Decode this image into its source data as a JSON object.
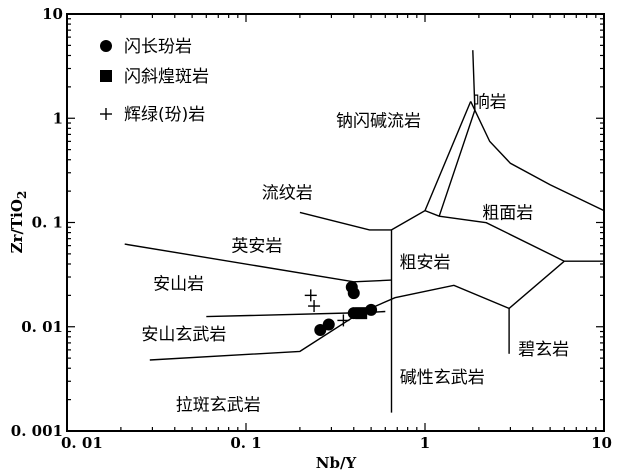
{
  "chart_data": {
    "type": "scatter",
    "title": "",
    "xlabel": "Nb/Y",
    "ylabel": "Zr/TiO",
    "ylabel_subscript": "2",
    "x_scale": "log",
    "y_scale": "log",
    "xlim": [
      0.01,
      10
    ],
    "ylim": [
      0.001,
      10
    ],
    "grid": false,
    "legend_position": "top-left",
    "x_ticks": [
      {
        "value": 0.01,
        "label": "0. 01"
      },
      {
        "value": 0.1,
        "label": "0. 1"
      },
      {
        "value": 1,
        "label": "1"
      },
      {
        "value": 10,
        "label": "10"
      }
    ],
    "y_ticks": [
      {
        "value": 0.001,
        "label": "0. 001"
      },
      {
        "value": 0.01,
        "label": "0. 01"
      },
      {
        "value": 0.1,
        "label": "0. 1"
      },
      {
        "value": 1,
        "label": "1"
      },
      {
        "value": 10,
        "label": "10"
      }
    ],
    "series": [
      {
        "name": "闪长玢岩",
        "marker": "circle",
        "points": [
          [
            0.39,
            0.024
          ],
          [
            0.4,
            0.021
          ],
          [
            0.4,
            0.0135
          ],
          [
            0.5,
            0.0145
          ],
          [
            0.29,
            0.0105
          ],
          [
            0.26,
            0.0093
          ]
        ]
      },
      {
        "name": "闪斜煌斑岩",
        "marker": "square",
        "points": [
          [
            0.44,
            0.0135
          ]
        ]
      },
      {
        "name": "辉绿(玢)岩",
        "marker": "plus",
        "points": [
          [
            0.23,
            0.02
          ],
          [
            0.24,
            0.0158
          ],
          [
            0.35,
            0.0115
          ]
        ]
      }
    ],
    "field_labels": [
      {
        "text": "钠闪碱流岩",
        "x": 0.55,
        "y": 0.95
      },
      {
        "text": "响岩",
        "x": 2.3,
        "y": 1.45
      },
      {
        "text": "流纹岩",
        "x": 0.17,
        "y": 0.195
      },
      {
        "text": "粗面岩",
        "x": 2.9,
        "y": 0.125
      },
      {
        "text": "英安岩",
        "x": 0.115,
        "y": 0.06
      },
      {
        "text": "粗安岩",
        "x": 1.0,
        "y": 0.042
      },
      {
        "text": "安山岩",
        "x": 0.042,
        "y": 0.026
      },
      {
        "text": "安山玄武岩",
        "x": 0.045,
        "y": 0.0085
      },
      {
        "text": "碧玄岩",
        "x": 4.6,
        "y": 0.0061
      },
      {
        "text": "碱性玄武岩",
        "x": 1.25,
        "y": 0.0033
      },
      {
        "text": "拉斑玄武岩",
        "x": 0.07,
        "y": 0.0018
      }
    ],
    "boundaries": [
      [
        [
          0.021,
          0.062
        ],
        [
          0.4,
          0.027
        ],
        [
          0.65,
          0.028
        ]
      ],
      [
        [
          0.029,
          0.0048
        ],
        [
          0.2,
          0.0058
        ],
        [
          0.43,
          0.0135
        ]
      ],
      [
        [
          0.06,
          0.0125
        ],
        [
          0.48,
          0.0137
        ],
        [
          0.6,
          0.014
        ]
      ],
      [
        [
          0.43,
          0.0135
        ],
        [
          0.68,
          0.019
        ],
        [
          1.45,
          0.025
        ],
        [
          2.95,
          0.015
        ],
        [
          6.0,
          0.0425
        ],
        [
          10,
          0.0425
        ]
      ],
      [
        [
          0.2,
          0.125
        ],
        [
          0.49,
          0.085
        ],
        [
          0.65,
          0.085
        ]
      ],
      [
        [
          0.65,
          0.085
        ],
        [
          1.0,
          0.13
        ],
        [
          1.2,
          0.115
        ],
        [
          2.2,
          0.0995
        ],
        [
          6.0,
          0.0425
        ]
      ],
      [
        [
          0.65,
          0.0015
        ],
        [
          0.65,
          0.085
        ]
      ],
      [
        [
          2.95,
          0.0055
        ],
        [
          2.95,
          0.015
        ]
      ],
      [
        [
          1.2,
          0.115
        ],
        [
          1.9,
          1.2
        ],
        [
          1.85,
          4.5
        ]
      ],
      [
        [
          1.0,
          0.13
        ],
        [
          1.8,
          1.45
        ]
      ],
      [
        [
          1.8,
          1.45
        ],
        [
          2.3,
          0.6
        ],
        [
          3.0,
          0.37
        ],
        [
          5.0,
          0.23
        ],
        [
          10,
          0.13
        ]
      ]
    ]
  }
}
